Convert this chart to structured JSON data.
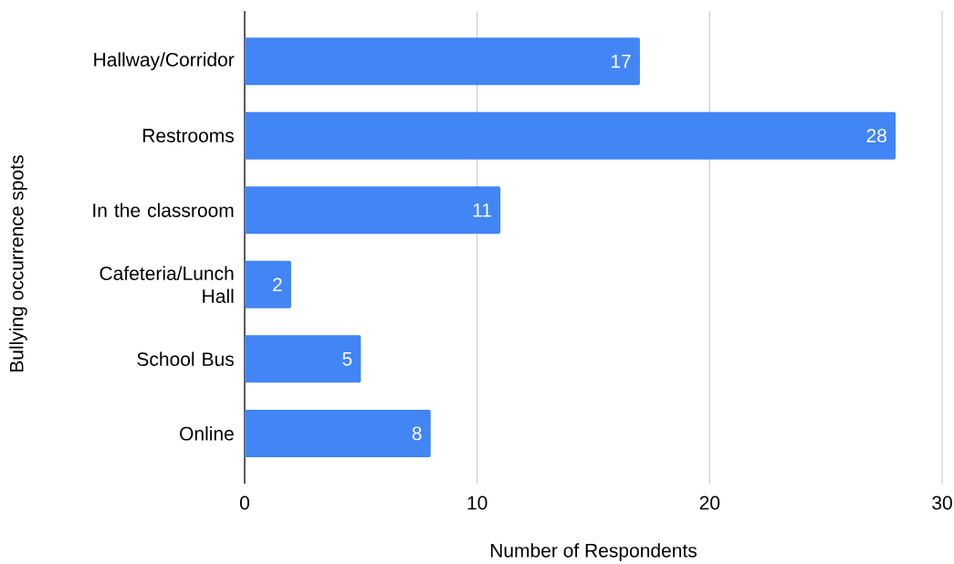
{
  "chart_data": {
    "type": "bar",
    "orientation": "horizontal",
    "categories": [
      "Hallway/Corridor",
      "Restrooms",
      "In the classroom",
      "Cafeteria/Lunch Hall",
      "School Bus",
      "Online"
    ],
    "values": [
      17,
      28,
      11,
      2,
      5,
      8
    ],
    "color": "#4285f4",
    "xlabel": "Number of Respondents",
    "ylabel": "Bullying occurrence spots",
    "xlim": [
      0,
      30
    ],
    "xticks": [
      0,
      10,
      20,
      30
    ],
    "grid": "x",
    "data_labels": true
  }
}
